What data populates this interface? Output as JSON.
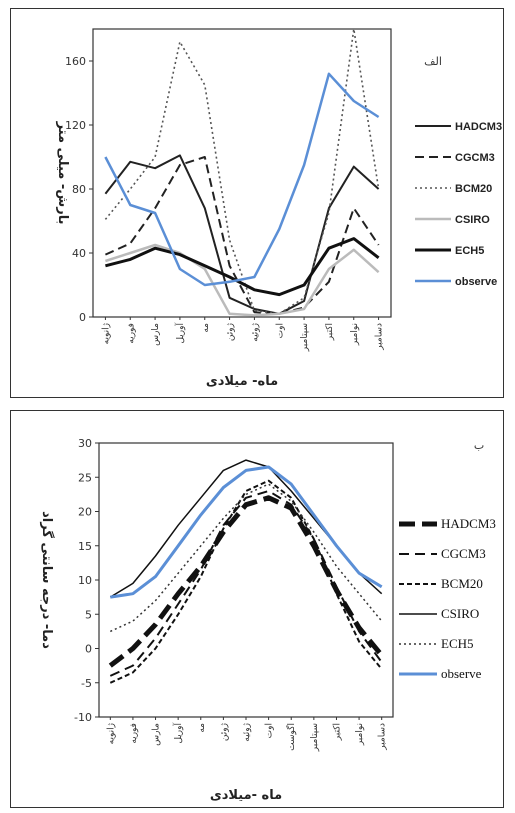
{
  "chart_data": [
    {
      "type": "line",
      "corner_label": "الف",
      "xlabel": "ماه- میلادی",
      "ylabel": "بارش- میلی متر",
      "ylim": [
        0,
        180
      ],
      "yticks": [
        0,
        40,
        80,
        120,
        160
      ],
      "grid": "off",
      "legend_position": "right",
      "categories": [
        "ژانویه",
        "فوریه",
        "مارس",
        "آوریل",
        "مه",
        "ژوئن",
        "ژوئیه",
        "اوت",
        "سپتامبر",
        "اکتبر",
        "نوامبر",
        "دسامبر"
      ],
      "series": [
        {
          "name": "HADCM3",
          "color": "#222222",
          "width": 2,
          "dash": "",
          "values": [
            77,
            97,
            93,
            101,
            68,
            12,
            5,
            2,
            10,
            68,
            94,
            80
          ]
        },
        {
          "name": "CGCM3",
          "color": "#222222",
          "width": 2,
          "dash": "9,5",
          "values": [
            39,
            46,
            68,
            95,
            100,
            32,
            3,
            2,
            6,
            22,
            68,
            45
          ]
        },
        {
          "name": "BCM20",
          "color": "#555555",
          "width": 1.6,
          "dash": "2,3",
          "values": [
            61,
            80,
            100,
            172,
            145,
            48,
            4,
            2,
            12,
            65,
            180,
            80
          ]
        },
        {
          "name": "CSIRO",
          "color": "#bbbbbb",
          "width": 2.5,
          "dash": "",
          "values": [
            35,
            40,
            45,
            40,
            30,
            2,
            1,
            2,
            5,
            30,
            42,
            28
          ]
        },
        {
          "name": "ECH5",
          "color": "#111111",
          "width": 3,
          "dash": "",
          "values": [
            32,
            36,
            43,
            39,
            32,
            25,
            17,
            14,
            20,
            43,
            49,
            37
          ]
        },
        {
          "name": "observe",
          "color": "#5b8fd6",
          "width": 2.5,
          "dash": "",
          "values": [
            100,
            70,
            65,
            30,
            20,
            22,
            25,
            55,
            95,
            152,
            135,
            125
          ]
        }
      ]
    },
    {
      "type": "line",
      "corner_label": "ب",
      "xlabel": "ماه -میلادی",
      "ylabel": "دما- درجه سانتی گراد",
      "ylim": [
        -10,
        30
      ],
      "yticks": [
        -10,
        -5,
        0,
        5,
        10,
        15,
        20,
        25,
        30
      ],
      "grid": "off",
      "legend_position": "right",
      "categories": [
        "ژانویه",
        "فوریه",
        "مارس",
        "آوریل",
        "مه",
        "ژوئن",
        "ژوئیه",
        "اوت",
        "اگوست",
        "سپتامبر",
        "اکتبر",
        "نوامبر",
        "دسامبر"
      ],
      "series": [
        {
          "name": "HADCM3",
          "color": "#111111",
          "width": 5,
          "dash": "16,7",
          "values": [
            -2.5,
            0,
            3.5,
            8,
            12,
            17,
            21,
            22,
            20.5,
            15,
            8.5,
            3,
            -1
          ]
        },
        {
          "name": "CGCM3",
          "color": "#111111",
          "width": 2,
          "dash": "10,6",
          "values": [
            -4,
            -2.5,
            1.5,
            6.5,
            11.5,
            18,
            22,
            23,
            21,
            16,
            9,
            2.5,
            -2
          ]
        },
        {
          "name": "BCM20",
          "color": "#111111",
          "width": 2,
          "dash": "5,3",
          "values": [
            -5,
            -3.5,
            0,
            5,
            10.5,
            17.5,
            23,
            24.5,
            22,
            16,
            8,
            1,
            -3
          ]
        },
        {
          "name": "CSIRO",
          "color": "#111111",
          "width": 1.5,
          "dash": "",
          "values": [
            7.5,
            9.5,
            13.5,
            18,
            22,
            26,
            27.5,
            26.5,
            23,
            19,
            15,
            11,
            8
          ]
        },
        {
          "name": "ECH5",
          "color": "#333333",
          "width": 1.5,
          "dash": "2,3",
          "values": [
            2.5,
            4,
            7,
            11,
            15,
            19,
            22.5,
            24,
            21.5,
            17,
            12,
            8,
            4
          ]
        },
        {
          "name": "observe",
          "color": "#5b8fd6",
          "width": 3,
          "dash": "",
          "values": [
            7.5,
            8,
            10.5,
            15,
            19.5,
            23.5,
            26,
            26.5,
            24,
            19.5,
            15,
            11,
            9
          ]
        }
      ]
    }
  ]
}
